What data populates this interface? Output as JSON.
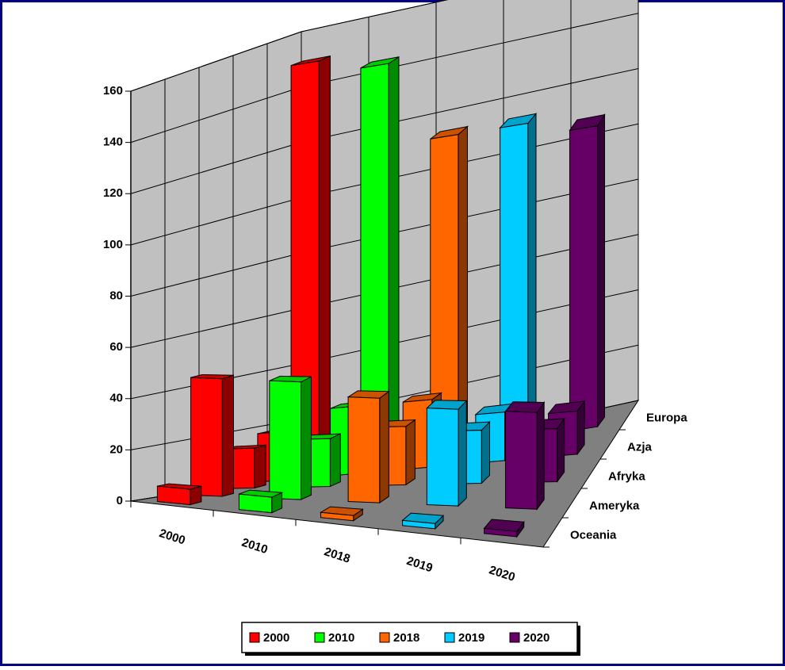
{
  "chart_data": {
    "type": "bar3d",
    "categories": [
      "2000",
      "2010",
      "2018",
      "2019",
      "2020"
    ],
    "depth_categories": [
      "Oceania",
      "Ameryka",
      "Afryka",
      "Azja",
      "Europa"
    ],
    "series": [
      {
        "name": "2000",
        "color": "#ff0000",
        "values": [
          6,
          45,
          15,
          18,
          150
        ]
      },
      {
        "name": "2010",
        "color": "#00ff00",
        "values": [
          6,
          45,
          18,
          25,
          145
        ]
      },
      {
        "name": "2018",
        "color": "#ff6600",
        "values": [
          2,
          40,
          22,
          25,
          115
        ]
      },
      {
        "name": "2019",
        "color": "#00ccff",
        "values": [
          2,
          37,
          20,
          18,
          115
        ]
      },
      {
        "name": "2020",
        "color": "#660066",
        "values": [
          2,
          37,
          20,
          16,
          110
        ]
      }
    ],
    "ylim": [
      0,
      160
    ],
    "yticks": [
      0,
      20,
      40,
      60,
      80,
      100,
      120,
      140,
      160
    ],
    "grid": true
  }
}
